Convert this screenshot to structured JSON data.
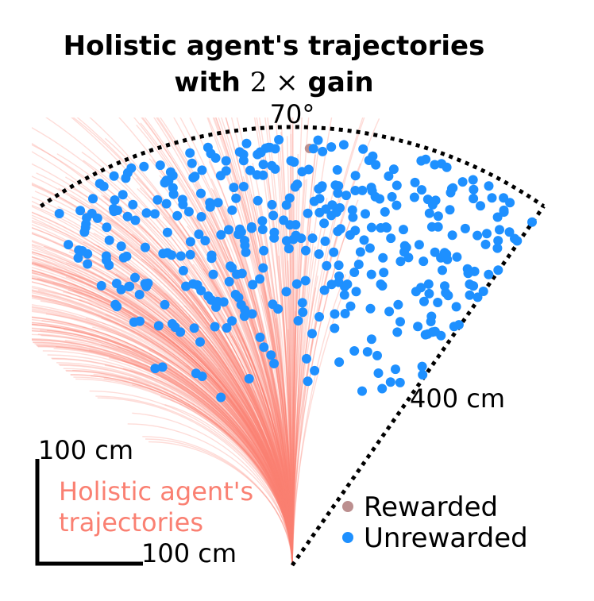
{
  "chart_data": {
    "type": "scatter",
    "title_line1": "Holistic agent's trajectories",
    "title_line2_prefix": "with",
    "title_line2_math": "2 ×",
    "title_line2_suffix": "gain",
    "angle_label": "70°",
    "radius_label": "400 cm",
    "scale_bar_vertical_label": "100 cm",
    "scale_bar_horizontal_label": "100 cm",
    "trajectory_label_line1": "Holistic agent's",
    "trajectory_label_line2": "trajectories",
    "legend": [
      {
        "name": "Rewarded",
        "color": "#bc8f8f"
      },
      {
        "name": "Unrewarded",
        "color": "#1e90ff"
      }
    ],
    "colors": {
      "trajectory": "#fa8072",
      "rewarded": "#bc8f8f",
      "unrewarded": "#1e90ff",
      "boundary": "#000000"
    },
    "field_of_view_deg": 70,
    "max_distance_cm": 400,
    "units": "cm",
    "rewarded_count_approx": 1,
    "unrewarded_count_approx": 400
  }
}
